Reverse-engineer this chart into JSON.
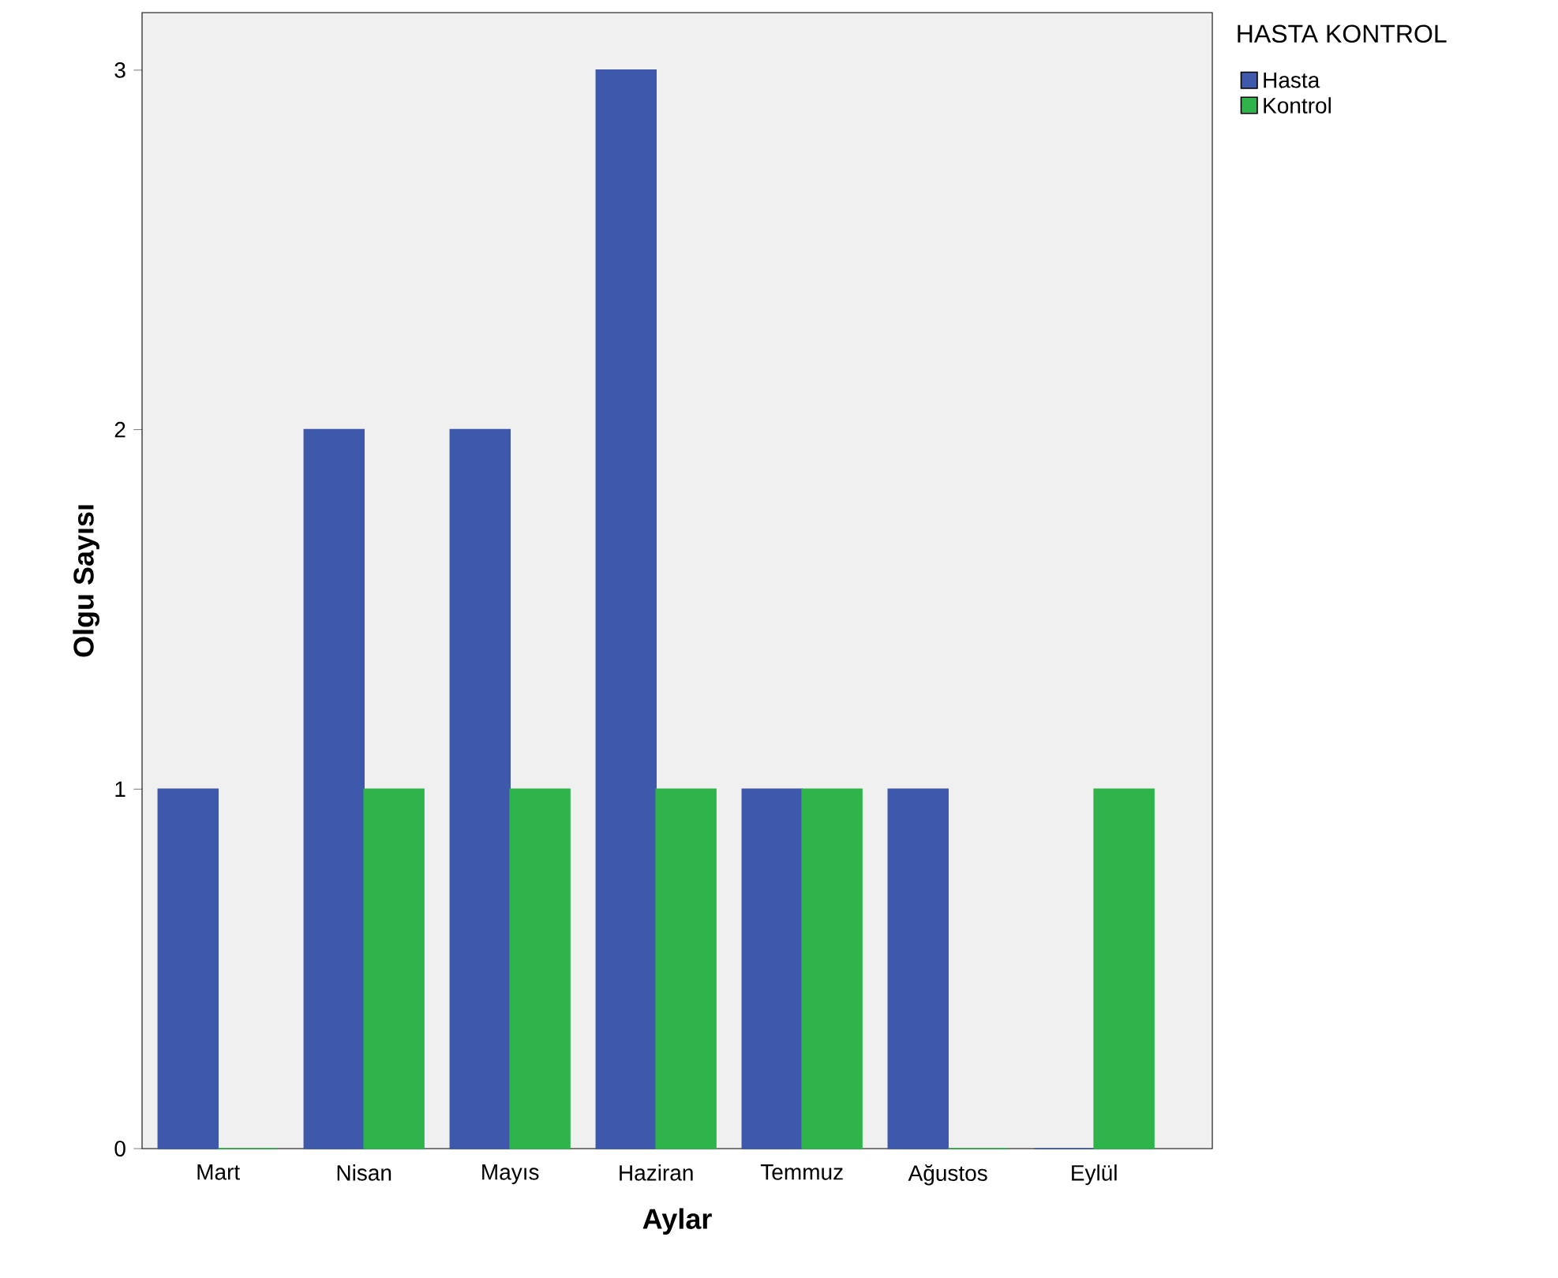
{
  "chart_data": {
    "type": "bar",
    "xlabel": "Aylar",
    "ylabel": "Olgu Sayısı",
    "legend_title": "HASTA KONTROL",
    "categories": [
      "Mart",
      "Nisan",
      "Mayıs",
      "Haziran",
      "Temmuz",
      "Ağustos",
      "Eylül"
    ],
    "series": [
      {
        "name": "Hasta",
        "color": "#3e58ac",
        "values": [
          1,
          2,
          2,
          3,
          1,
          1,
          0
        ]
      },
      {
        "name": "Kontrol",
        "color": "#2eb44a",
        "values": [
          0,
          1,
          1,
          1,
          1,
          0,
          1
        ]
      }
    ],
    "ylim": [
      0,
      3.16
    ],
    "yticks": [
      0,
      1,
      2,
      3
    ],
    "grid": false,
    "legend": "top right"
  }
}
